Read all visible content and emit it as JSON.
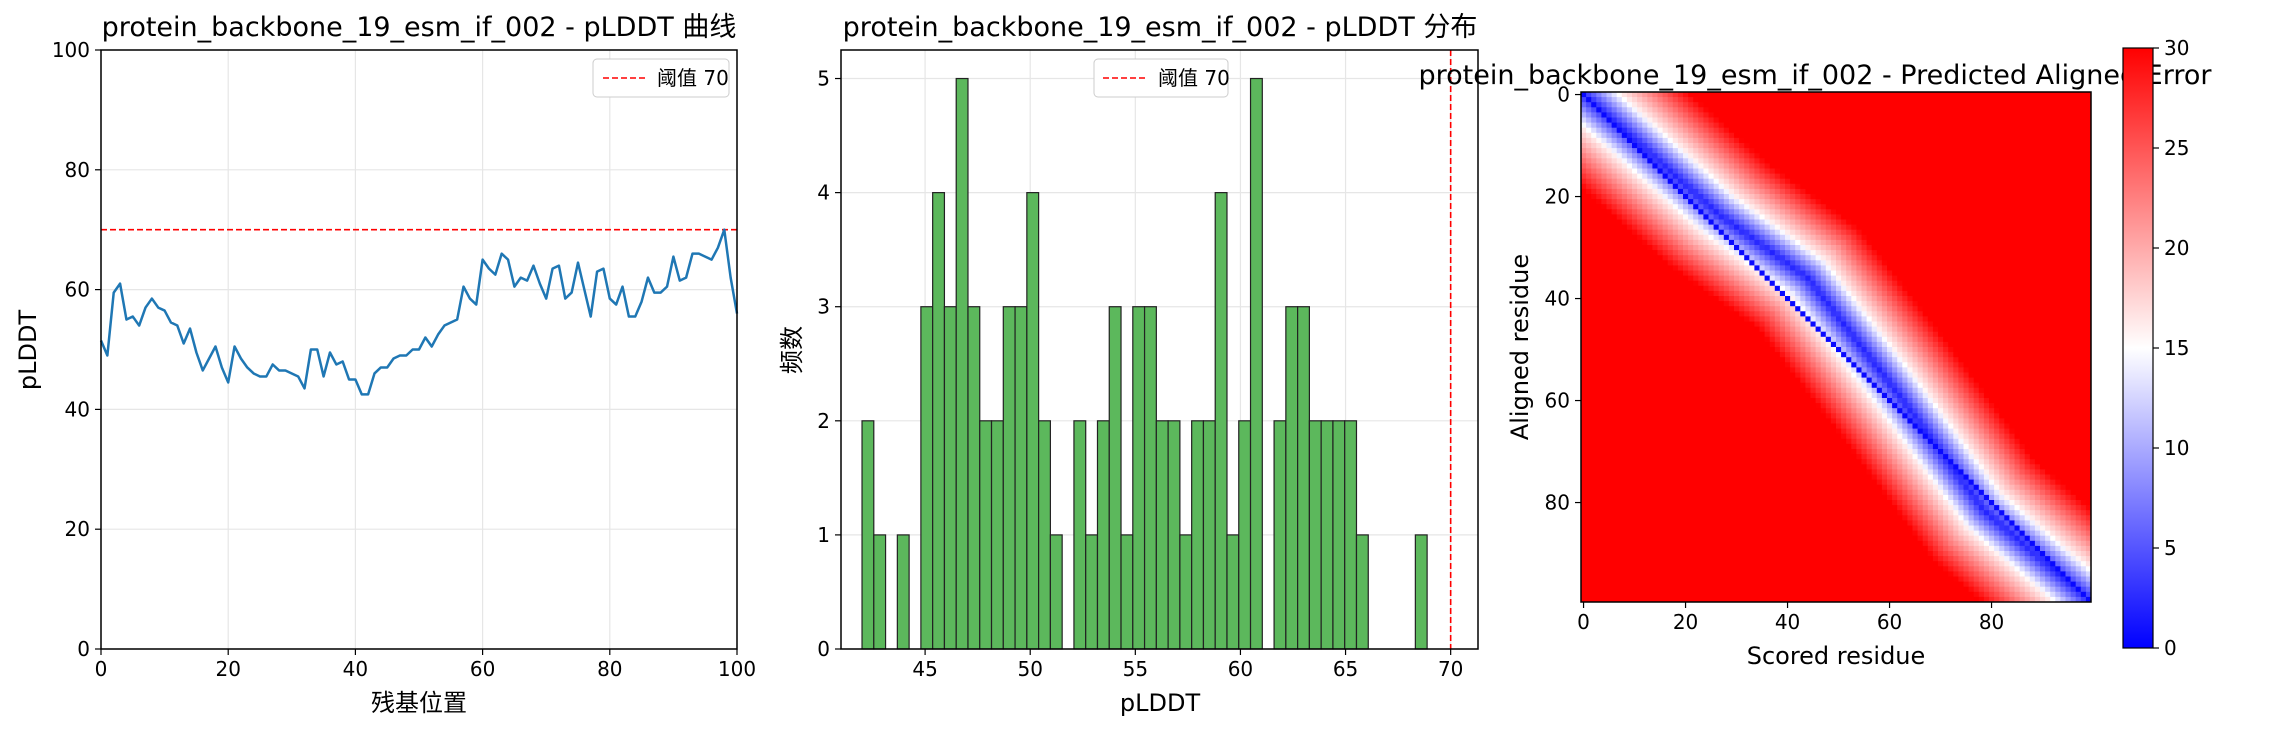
{
  "chart_data": [
    {
      "type": "line",
      "title": "protein_backbone_19_esm_if_002 - pLDDT 曲线",
      "xlabel": "残基位置",
      "ylabel": "pLDDT",
      "xlim": [
        0,
        100
      ],
      "ylim": [
        0,
        100
      ],
      "xticks": [
        0,
        20,
        40,
        60,
        80,
        100
      ],
      "yticks": [
        0,
        20,
        40,
        60,
        80,
        100
      ],
      "grid": true,
      "legend": {
        "placement": "top-right",
        "entries": [
          {
            "label": "阈值 70",
            "style": "dashed",
            "color": "#ff0000"
          }
        ]
      },
      "threshold": 70,
      "series": [
        {
          "color": "#1f77b4",
          "x": [
            0,
            1,
            2,
            3,
            4,
            5,
            6,
            7,
            8,
            9,
            10,
            11,
            12,
            13,
            14,
            15,
            16,
            17,
            18,
            19,
            20,
            21,
            22,
            23,
            24,
            25,
            26,
            27,
            28,
            29,
            30,
            31,
            32,
            33,
            34,
            35,
            36,
            37,
            38,
            39,
            40,
            41,
            42,
            43,
            44,
            45,
            46,
            47,
            48,
            49,
            50,
            51,
            52,
            53,
            54,
            55,
            56,
            57,
            58,
            59,
            60,
            61,
            62,
            63,
            64,
            65,
            66,
            67,
            68,
            69,
            70,
            71,
            72,
            73,
            74,
            75,
            76,
            77,
            78,
            79,
            80,
            81,
            82,
            83,
            84,
            85,
            86,
            87,
            88,
            89,
            90,
            91,
            92,
            93,
            94,
            95,
            96,
            97,
            98,
            99,
            100
          ],
          "values": [
            51.5,
            49,
            59.5,
            61,
            55,
            55.5,
            54,
            57,
            58.5,
            57,
            56.5,
            54.5,
            54,
            51,
            53.5,
            49.5,
            46.5,
            48.5,
            50.5,
            47,
            44.5,
            50.5,
            48.5,
            47,
            46,
            45.5,
            45.5,
            47.5,
            46.5,
            46.5,
            46,
            45.5,
            43.5,
            50,
            50,
            45.5,
            49.5,
            47.5,
            48,
            45,
            45,
            42.5,
            42.5,
            46,
            47,
            47,
            48.5,
            49,
            49,
            50,
            50,
            52,
            50.5,
            52.5,
            54,
            54.5,
            55,
            60.5,
            58.5,
            57.5,
            65,
            63.5,
            62.5,
            66,
            65,
            60.5,
            62,
            61.5,
            64,
            61,
            58.5,
            63.5,
            64,
            58.5,
            59.5,
            64.5,
            60,
            55.5,
            63,
            63.5,
            58.5,
            57.5,
            60.5,
            55.5,
            55.5,
            58,
            62,
            59.5,
            59.5,
            60.5,
            65.5,
            61.5,
            62,
            66,
            66,
            65.5,
            65,
            67,
            70,
            62,
            56
          ]
        }
      ]
    },
    {
      "type": "bar",
      "title": "protein_backbone_19_esm_if_002 - pLDDT 分布",
      "xlabel": "pLDDT",
      "ylabel": "频数",
      "xlim": [
        41,
        71.3
      ],
      "ylim": [
        0,
        5.25
      ],
      "xticks": [
        45,
        50,
        55,
        60,
        65,
        70
      ],
      "yticks": [
        0,
        1,
        2,
        3,
        4,
        5
      ],
      "grid": true,
      "legend": {
        "placement": "top-center",
        "entries": [
          {
            "label": "阈值 70",
            "style": "dashed",
            "color": "#ff0000"
          }
        ]
      },
      "threshold": 70,
      "bin_start": 42.0,
      "bin_width": 0.56,
      "color": "#5cb85c",
      "values": [
        2,
        1,
        0,
        1,
        0,
        3,
        4,
        3,
        5,
        3,
        2,
        2,
        3,
        3,
        4,
        2,
        1,
        0,
        2,
        1,
        2,
        3,
        1,
        3,
        3,
        2,
        2,
        1,
        2,
        2,
        4,
        1,
        2,
        5,
        0,
        2,
        3,
        3,
        2,
        2,
        2,
        2,
        1,
        0,
        0,
        0,
        0,
        1
      ]
    },
    {
      "type": "heatmap",
      "title": "protein_backbone_19_esm_if_002 - Predicted Aligned Error",
      "xlabel": "Scored residue",
      "ylabel": "Aligned residue",
      "n": 100,
      "xticks": [
        0,
        20,
        40,
        60,
        80
      ],
      "yticks": [
        0,
        20,
        40,
        60,
        80
      ],
      "colormap": "bwr",
      "clim": [
        0,
        30
      ],
      "colorbar_ticks": [
        0,
        5,
        10,
        15,
        20,
        25,
        30
      ],
      "diagonal_band": {
        "center_offset": [
          [
            0,
            0
          ],
          [
            25,
            3
          ],
          [
            40,
            8
          ],
          [
            60,
            3
          ],
          [
            80,
            -3
          ],
          [
            99,
            0
          ]
        ],
        "half_width": 7
      }
    }
  ]
}
